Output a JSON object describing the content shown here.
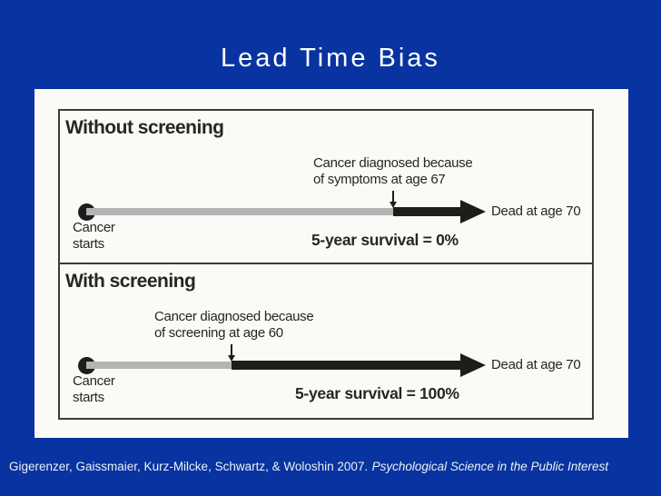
{
  "title": "Lead Time Bias",
  "citation": {
    "authors": "Gigerenzer, Gaissmaier, Kurz-Milcke, Schwartz, & Woloshin 2007.",
    "journal": "Psychological Science in the Public Interest"
  },
  "diagram": {
    "panels": [
      {
        "heading": "Without screening",
        "diagnosis_line1": "Cancer diagnosed because",
        "diagnosis_line2": "of symptoms at age 67",
        "start_line1": "Cancer",
        "start_line2": "starts",
        "end_label": "Dead at age 70",
        "survival_label": "5-year survival = 0%"
      },
      {
        "heading": "With screening",
        "diagnosis_line1": "Cancer diagnosed because",
        "diagnosis_line2": "of screening at age 60",
        "start_line1": "Cancer",
        "start_line2": "starts",
        "end_label": "Dead at age 70",
        "survival_label": "5-year survival = 100%"
      }
    ]
  },
  "colors": {
    "background": "#0833A0",
    "panel_background": "#FBFAF7",
    "ink": "#1d1d1b",
    "lead_time_gray": "#b4b4b4",
    "title_text": "#ffffff"
  }
}
